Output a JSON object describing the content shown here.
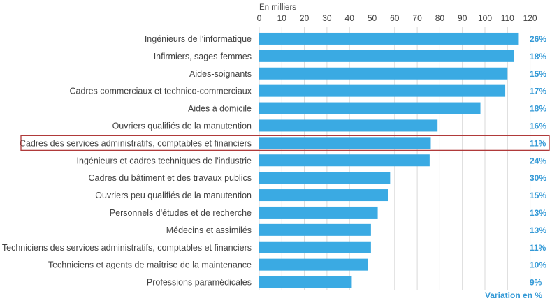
{
  "chart_data": {
    "type": "bar",
    "orientation": "horizontal",
    "unit_label": "En milliers",
    "xlim": [
      0,
      120
    ],
    "x_ticks": [
      "0",
      "10",
      "20",
      "30",
      "40",
      "50",
      "60",
      "70",
      "80",
      "90",
      "100",
      "110",
      "120"
    ],
    "grid": true,
    "bar_color": "#3aaae3",
    "highlight_color": "#b03a3a",
    "variation_color": "#3399d6",
    "categories": [
      "Ingénieurs de l'informatique",
      "Infirmiers, sages-femmes",
      "Aides-soignants",
      "Cadres commerciaux et technico-commerciaux",
      "Aides à domicile",
      "Ouvriers qualifiés de la manutention",
      "Cadres des services administratifs, comptables et financiers",
      "Ingénieurs et cadres techniques de l'industrie",
      "Cadres du bâtiment et des travaux publics",
      "Ouvriers peu qualifiés de la manutention",
      "Personnels d'études et de recherche",
      "Médecins et assimilés",
      "Techniciens des services administratifs, comptables et financiers",
      "Techniciens et agents de maîtrise de la maintenance",
      "Professions paramédicales"
    ],
    "values": [
      115,
      113,
      110,
      109,
      98,
      79,
      76,
      75.5,
      58,
      57,
      52.5,
      49.5,
      49.5,
      48,
      41
    ],
    "variations": [
      "26%",
      "18%",
      "15%",
      "17%",
      "18%",
      "16%",
      "11%",
      "24%",
      "30%",
      "15%",
      "13%",
      "13%",
      "11%",
      "10%",
      "9%"
    ],
    "highlighted_category": "Cadres des services administratifs, comptables et financiers",
    "variation_label": "Variation en %"
  }
}
